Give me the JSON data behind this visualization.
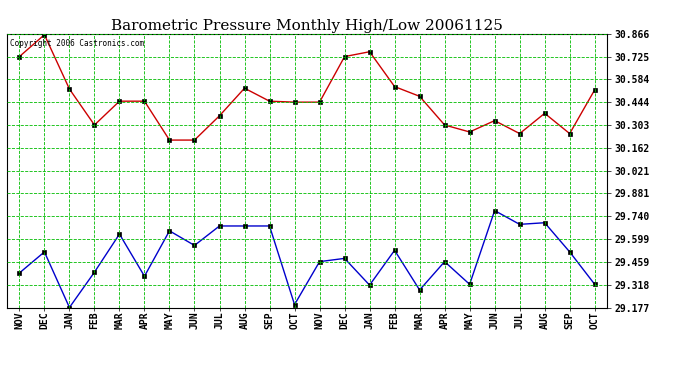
{
  "title": "Barometric Pressure Monthly High/Low 20061125",
  "copyright": "Copyright 2006 Castronics.com",
  "x_labels": [
    "NOV",
    "DEC",
    "JAN",
    "FEB",
    "MAR",
    "APR",
    "MAY",
    "JUN",
    "JUL",
    "AUG",
    "SEP",
    "OCT",
    "NOV",
    "DEC",
    "JAN",
    "FEB",
    "MAR",
    "APR",
    "MAY",
    "JUN",
    "JUL",
    "AUG",
    "SEP",
    "OCT"
  ],
  "high_values": [
    30.725,
    30.86,
    30.525,
    30.303,
    30.45,
    30.45,
    30.21,
    30.21,
    30.36,
    30.53,
    30.45,
    30.444,
    30.444,
    30.725,
    30.755,
    30.54,
    30.48,
    30.303,
    30.26,
    30.33,
    30.25,
    30.375,
    30.25,
    30.52
  ],
  "low_values": [
    29.39,
    29.52,
    29.177,
    29.395,
    29.63,
    29.37,
    29.65,
    29.56,
    29.68,
    29.68,
    29.68,
    29.195,
    29.46,
    29.48,
    29.315,
    29.53,
    29.285,
    29.46,
    29.32,
    29.775,
    29.69,
    29.7,
    29.52,
    29.32
  ],
  "high_color": "#cc0000",
  "low_color": "#0000cc",
  "bg_color": "#ffffff",
  "grid_color": "#00bb00",
  "title_fontsize": 11,
  "y_min": 29.177,
  "y_max": 30.866,
  "y_ticks": [
    29.177,
    29.318,
    29.459,
    29.599,
    29.74,
    29.881,
    30.021,
    30.162,
    30.303,
    30.444,
    30.584,
    30.725,
    30.866
  ]
}
